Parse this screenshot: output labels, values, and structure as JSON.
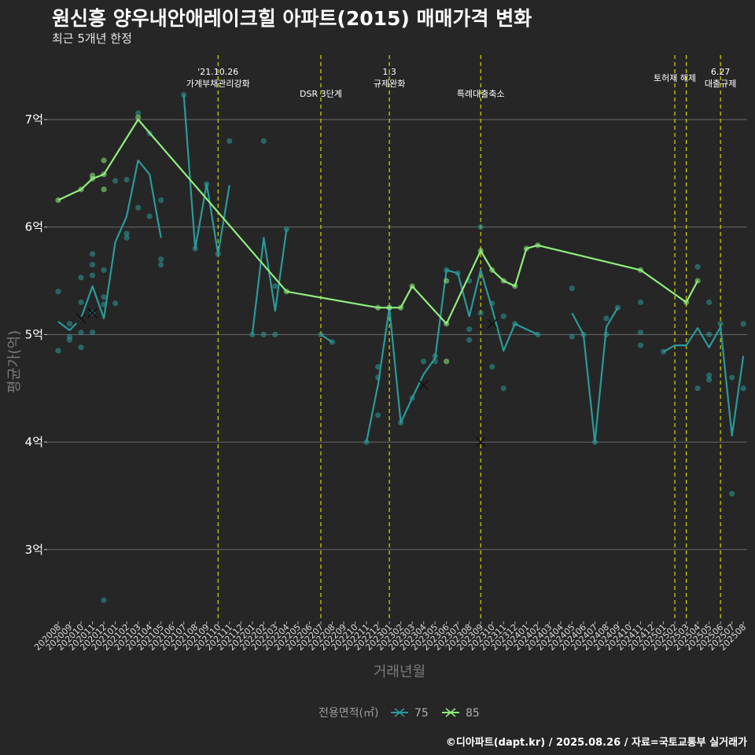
{
  "header": {
    "title": "원신흥 양우내안애레이크힐 아파트(2015) 매매가격 변화",
    "subtitle": "최근 5개년 한정",
    "credit": "©디아파트(dapt.kr) / 2025.08.26 / 자료=국토교통부 실거래가"
  },
  "chart_data": {
    "type": "line",
    "xlabel": "거래년월",
    "ylabel": "평균가(억)",
    "ylim": [
      2.3,
      7.5
    ],
    "y_ticks": [
      3,
      4,
      5,
      6,
      7
    ],
    "y_tick_labels": [
      "3억",
      "4억",
      "5억",
      "6억",
      "7억"
    ],
    "grid": true,
    "x_labels": [
      "202008",
      "202009",
      "202010",
      "202011",
      "202012",
      "202101",
      "202102",
      "202103",
      "202104",
      "202105",
      "202106",
      "202107",
      "202108",
      "202109",
      "202110",
      "202111",
      "202112",
      "202201",
      "202202",
      "202203",
      "202204",
      "202205",
      "202206",
      "202207",
      "202208",
      "202209",
      "202210",
      "202211",
      "202212",
      "202301",
      "202302",
      "202303",
      "202304",
      "202305",
      "202306",
      "202307",
      "202308",
      "202309",
      "202310",
      "202311",
      "202312",
      "202401",
      "202402",
      "202403",
      "202404",
      "202405",
      "202406",
      "202407",
      "202408",
      "202409",
      "202410",
      "202411",
      "202412",
      "202501",
      "202502",
      "202503",
      "202504",
      "202505",
      "202506",
      "202507",
      "202508"
    ],
    "events": [
      {
        "x": 14,
        "label": "'21.10.26\n가계부채관리강화"
      },
      {
        "x": 23,
        "label": "DSR 3단계"
      },
      {
        "x": 29,
        "label": "1.3\n규제완화"
      },
      {
        "x": 37,
        "label": "특례대출축소"
      },
      {
        "x": 54,
        "label": "토허제 해제"
      },
      {
        "x": 55,
        "label": ""
      },
      {
        "x": 58,
        "label": "6.27\n대출규제"
      }
    ],
    "legend": {
      "title": "전용면적(㎡)",
      "position": "bottom"
    },
    "series": [
      {
        "name": "75",
        "color": "#2a9a99",
        "line": [
          [
            0,
            5.12
          ],
          [
            1,
            5.04
          ],
          [
            2,
            5.15
          ],
          [
            3,
            5.45
          ],
          [
            4,
            5.15
          ],
          [
            5,
            5.86
          ],
          [
            6,
            6.1
          ],
          [
            7,
            6.62
          ],
          [
            8,
            6.49
          ],
          [
            9,
            5.9
          ],
          null,
          [
            11,
            7.23
          ],
          [
            12,
            5.8
          ],
          [
            13,
            6.4
          ],
          [
            14,
            5.75
          ],
          [
            15,
            6.39
          ],
          null,
          [
            17,
            5.0
          ],
          [
            18,
            5.9
          ],
          [
            19,
            5.22
          ],
          [
            20,
            5.98
          ],
          null,
          [
            23,
            5.0
          ],
          [
            24,
            4.93
          ],
          null,
          [
            27,
            4.0
          ],
          [
            28,
            4.53
          ],
          [
            29,
            5.25
          ],
          [
            30,
            4.18
          ],
          [
            31,
            4.41
          ],
          [
            32,
            4.63
          ],
          [
            33,
            4.78
          ],
          [
            34,
            5.6
          ],
          [
            35,
            5.57
          ],
          [
            36,
            5.17
          ],
          [
            37,
            5.6
          ],
          [
            38,
            5.24
          ],
          [
            39,
            4.85
          ],
          [
            40,
            5.1
          ],
          [
            41,
            5.05
          ],
          [
            42,
            5.0
          ],
          null,
          [
            45,
            5.2
          ],
          [
            46,
            5.0
          ],
          [
            47,
            4.0
          ],
          [
            48,
            5.07
          ],
          [
            49,
            5.25
          ],
          null,
          [
            53,
            4.84
          ],
          [
            54,
            4.9
          ],
          [
            55,
            4.9
          ],
          [
            56,
            5.06
          ],
          [
            57,
            4.88
          ],
          [
            58,
            5.07
          ],
          [
            59,
            4.06
          ],
          [
            60,
            4.8
          ]
        ],
        "points": [
          [
            0,
            5.4
          ],
          [
            0,
            4.85
          ],
          [
            1,
            5.1
          ],
          [
            1,
            4.98
          ],
          [
            1,
            4.95
          ],
          [
            2,
            5.53
          ],
          [
            2,
            5.3
          ],
          [
            2,
            5.02
          ],
          [
            2,
            4.88
          ],
          [
            3,
            5.75
          ],
          [
            3,
            5.65
          ],
          [
            3,
            5.55
          ],
          [
            3,
            5.2
          ],
          [
            3,
            5.02
          ],
          [
            4,
            5.6
          ],
          [
            4,
            5.35
          ],
          [
            4,
            5.28
          ],
          [
            4,
            2.53
          ],
          [
            5,
            5.29
          ],
          [
            5,
            6.43
          ],
          [
            6,
            6.44
          ],
          [
            6,
            5.94
          ],
          [
            6,
            5.9
          ],
          [
            7,
            7.06
          ],
          [
            7,
            6.18
          ],
          [
            8,
            6.87
          ],
          [
            8,
            6.1
          ],
          [
            9,
            6.25
          ],
          [
            9,
            5.7
          ],
          [
            9,
            5.65
          ],
          [
            11,
            7.23
          ],
          [
            12,
            5.8
          ],
          [
            13,
            6.4
          ],
          [
            14,
            5.75
          ],
          [
            15,
            6.8
          ],
          [
            17,
            5.0
          ],
          [
            18,
            6.8
          ],
          [
            18,
            5.0
          ],
          [
            19,
            5.45
          ],
          [
            19,
            5.0
          ],
          [
            20,
            5.98
          ],
          [
            23,
            5.0
          ],
          [
            24,
            4.93
          ],
          [
            27,
            4.0
          ],
          [
            28,
            4.7
          ],
          [
            28,
            4.6
          ],
          [
            28,
            4.25
          ],
          [
            29,
            5.25
          ],
          [
            30,
            4.18
          ],
          [
            31,
            4.41
          ],
          [
            32,
            4.75
          ],
          [
            33,
            4.8
          ],
          [
            33,
            4.75
          ],
          [
            34,
            5.6
          ],
          [
            35,
            5.57
          ],
          [
            36,
            5.5
          ],
          [
            36,
            5.05
          ],
          [
            36,
            4.95
          ],
          [
            37,
            6.0
          ],
          [
            37,
            5.2
          ],
          [
            38,
            5.29
          ],
          [
            38,
            4.7
          ],
          [
            39,
            5.17
          ],
          [
            39,
            4.5
          ],
          [
            40,
            5.1
          ],
          [
            42,
            5.0
          ],
          [
            45,
            5.43
          ],
          [
            45,
            4.98
          ],
          [
            46,
            5.0
          ],
          [
            47,
            4.0
          ],
          [
            48,
            5.15
          ],
          [
            48,
            5.0
          ],
          [
            49,
            5.25
          ],
          [
            51,
            5.3
          ],
          [
            51,
            5.02
          ],
          [
            51,
            4.9
          ],
          [
            53,
            4.84
          ],
          [
            56,
            5.63
          ],
          [
            56,
            4.5
          ],
          [
            57,
            5.3
          ],
          [
            57,
            5.0
          ],
          [
            57,
            4.62
          ],
          [
            57,
            4.58
          ],
          [
            58,
            5.1
          ],
          [
            59,
            4.6
          ],
          [
            59,
            3.52
          ],
          [
            60,
            5.1
          ],
          [
            60,
            4.5
          ]
        ],
        "markers": [
          [
            2,
            5.15
          ],
          [
            3,
            5.2
          ],
          [
            32,
            4.53
          ],
          [
            37,
            4.0
          ],
          [
            38,
            5.1
          ]
        ]
      },
      {
        "name": "85",
        "color": "#90ee7e",
        "line": [
          [
            0,
            6.25
          ],
          [
            2,
            6.35
          ],
          [
            3,
            6.45
          ],
          [
            4,
            6.49
          ],
          [
            7,
            7.0
          ],
          [
            20,
            5.4
          ],
          [
            28,
            5.25
          ],
          [
            29,
            5.25
          ],
          [
            30,
            5.25
          ],
          [
            31,
            5.45
          ],
          [
            34,
            5.1
          ],
          [
            37,
            5.78
          ],
          [
            38,
            5.6
          ],
          [
            39,
            5.5
          ],
          [
            40,
            5.45
          ],
          [
            41,
            5.8
          ],
          [
            42,
            5.83
          ],
          [
            51,
            5.6
          ],
          [
            55,
            5.3
          ],
          [
            56,
            5.5
          ]
        ],
        "points": [
          [
            0,
            6.25
          ],
          [
            2,
            6.35
          ],
          [
            3,
            6.48
          ],
          [
            3,
            6.45
          ],
          [
            4,
            6.62
          ],
          [
            4,
            6.35
          ],
          [
            4,
            6.49
          ],
          [
            7,
            7.02
          ],
          [
            20,
            5.4
          ],
          [
            28,
            5.25
          ],
          [
            29,
            5.25
          ],
          [
            30,
            5.25
          ],
          [
            31,
            5.45
          ],
          [
            34,
            5.1
          ],
          [
            34,
            5.5
          ],
          [
            34,
            4.75
          ],
          [
            37,
            5.78
          ],
          [
            38,
            5.6
          ],
          [
            39,
            5.5
          ],
          [
            40,
            5.45
          ],
          [
            41,
            5.8
          ],
          [
            42,
            5.83
          ],
          [
            51,
            5.6
          ],
          [
            55,
            5.3
          ],
          [
            56,
            5.5
          ]
        ],
        "markers": [
          [
            3,
            5.2
          ]
        ]
      }
    ]
  }
}
